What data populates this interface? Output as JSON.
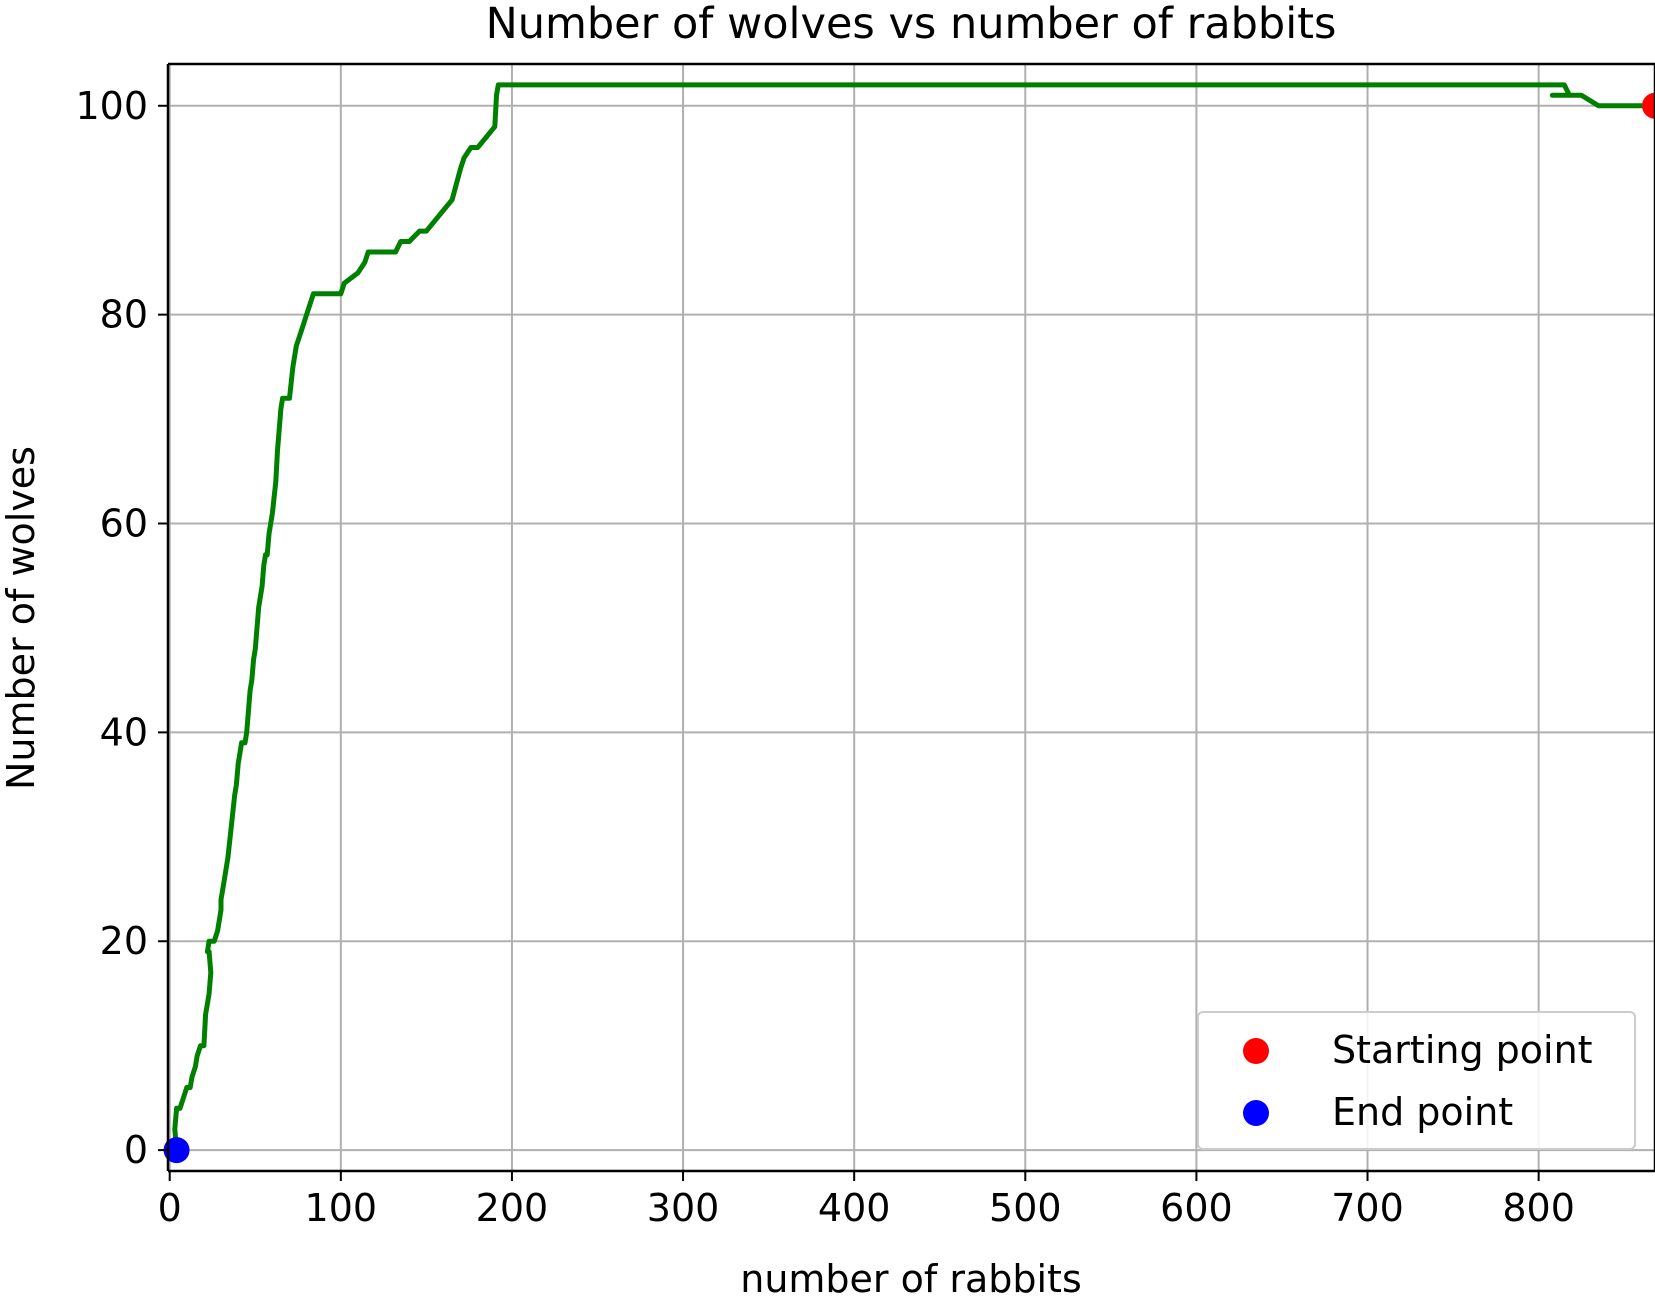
{
  "chart_data": {
    "type": "line",
    "title": "Number of wolves vs number of rabbits",
    "xlabel": "number of rabbits",
    "ylabel": "Number of wolves",
    "xlim": [
      -1,
      868
    ],
    "ylim": [
      -2,
      104
    ],
    "xticks": [
      0,
      100,
      200,
      300,
      400,
      500,
      600,
      700,
      800
    ],
    "yticks": [
      0,
      20,
      40,
      60,
      80,
      100
    ],
    "grid": true,
    "legend_position": "lower-right",
    "series": [
      {
        "color": "#008000",
        "x": [
          868,
          855,
          845,
          835,
          825,
          818,
          808,
          818,
          815,
          192,
          191,
          190,
          185,
          180,
          176,
          172,
          170,
          165,
          160,
          155,
          150,
          146,
          140,
          135,
          132,
          128,
          120,
          116,
          114,
          110,
          102,
          100,
          90,
          87,
          84,
          80,
          78,
          76,
          74,
          72,
          70,
          68,
          66,
          65,
          64,
          63,
          62,
          60,
          58,
          57,
          56,
          55,
          54,
          52,
          51,
          50,
          49,
          48,
          47,
          46,
          45,
          44,
          42,
          40,
          39,
          38,
          36,
          34,
          33,
          32,
          31,
          30,
          30,
          28,
          26,
          24,
          23,
          22,
          23,
          24,
          23,
          22,
          21,
          20,
          18,
          16,
          15,
          13,
          12,
          10,
          8,
          6,
          5,
          4,
          3,
          4
        ],
        "y": [
          100,
          100,
          100,
          100,
          101,
          101,
          101,
          101,
          102,
          102,
          101,
          98,
          97,
          96,
          96,
          95,
          94,
          91,
          90,
          89,
          88,
          88,
          87,
          87,
          86,
          86,
          86,
          86,
          85,
          84,
          83,
          82,
          82,
          82,
          82,
          80,
          79,
          78,
          77,
          75,
          72,
          72,
          72,
          71,
          69,
          67,
          64,
          61,
          59,
          57,
          57,
          56,
          54,
          52,
          50,
          48,
          47,
          45,
          44,
          42,
          40,
          39,
          39,
          37,
          35,
          34,
          31,
          28,
          27,
          26,
          25,
          24,
          23,
          21,
          20,
          20,
          20,
          19,
          19,
          17,
          15,
          14,
          13,
          10,
          10,
          9,
          8,
          7,
          6,
          6,
          5,
          4,
          4,
          4,
          2,
          0
        ]
      }
    ],
    "points": [
      {
        "name": "Starting point",
        "x": 868,
        "y": 100,
        "color": "#ff0000"
      },
      {
        "name": "End point",
        "x": 4,
        "y": 0,
        "color": "#0000ff"
      }
    ],
    "colors": {
      "grid": "#b0b0b0",
      "axes": "#000000",
      "legend_border": "#cccccc"
    }
  }
}
